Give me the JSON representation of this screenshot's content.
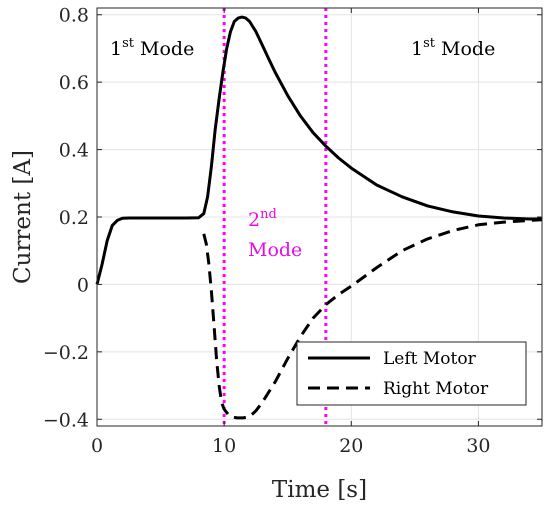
{
  "chart_data": {
    "type": "line",
    "xlabel": "Time [s]",
    "ylabel": "Current [A]",
    "xlim": [
      0,
      35
    ],
    "ylim": [
      -0.42,
      0.82
    ],
    "xticks": [
      0,
      10,
      20,
      30
    ],
    "yticks": [
      -0.4,
      -0.2,
      0,
      0.2,
      0.4,
      0.6,
      0.8
    ],
    "ytick_labels": [
      "−0.4",
      "−0.2",
      "0",
      "0.2",
      "0.4",
      "0.6",
      "0.8"
    ],
    "grid": true,
    "legend_position": "bottom-right",
    "series": [
      {
        "name": "Left Motor",
        "style": "solid",
        "color": "#000000",
        "x": [
          0,
          0.4,
          0.8,
          1.2,
          1.6,
          2.0,
          2.5,
          3.0,
          4,
          5,
          6,
          7,
          8,
          8.4,
          8.7,
          9.0,
          9.3,
          9.6,
          9.9,
          10.2,
          10.5,
          10.8,
          11.1,
          11.4,
          11.7,
          12.0,
          12.5,
          13,
          13.5,
          14,
          15,
          16,
          17,
          18,
          19,
          20,
          22,
          24,
          26,
          28,
          30,
          32,
          34,
          35
        ],
        "y": [
          0.0,
          0.06,
          0.13,
          0.175,
          0.19,
          0.196,
          0.197,
          0.197,
          0.197,
          0.197,
          0.197,
          0.197,
          0.198,
          0.21,
          0.26,
          0.35,
          0.46,
          0.55,
          0.63,
          0.7,
          0.75,
          0.78,
          0.79,
          0.793,
          0.79,
          0.78,
          0.75,
          0.71,
          0.67,
          0.63,
          0.56,
          0.5,
          0.45,
          0.41,
          0.375,
          0.345,
          0.295,
          0.26,
          0.233,
          0.215,
          0.203,
          0.197,
          0.194,
          0.194
        ]
      },
      {
        "name": "Right Motor",
        "style": "dashed",
        "color": "#000000",
        "x": [
          8.4,
          8.6,
          8.8,
          9.0,
          9.2,
          9.4,
          9.6,
          9.8,
          10.0,
          10.3,
          10.6,
          11.0,
          11.5,
          12.0,
          12.5,
          13,
          13.5,
          14,
          15,
          16,
          17,
          18,
          19,
          20,
          22,
          24,
          26,
          28,
          30,
          32,
          34,
          35
        ],
        "y": [
          0.15,
          0.12,
          0.06,
          -0.02,
          -0.12,
          -0.22,
          -0.3,
          -0.35,
          -0.37,
          -0.385,
          -0.393,
          -0.396,
          -0.396,
          -0.392,
          -0.375,
          -0.35,
          -0.32,
          -0.29,
          -0.22,
          -0.155,
          -0.1,
          -0.06,
          -0.03,
          -0.005,
          0.05,
          0.1,
          0.135,
          0.16,
          0.177,
          0.185,
          0.19,
          0.192
        ]
      }
    ],
    "mode_lines": {
      "x": [
        10,
        18
      ],
      "color": "#ff00ff",
      "style": "dotted"
    },
    "annotations": {
      "left_mode": {
        "base": "1",
        "sup": "st",
        "rest": " Mode"
      },
      "mid_mode": {
        "sup_base": "2",
        "sup": "nd",
        "line2": "Mode",
        "color": "#e60ce6"
      },
      "right_mode": {
        "base": "1",
        "sup": "st",
        "rest": " Mode"
      }
    },
    "legend": [
      "Left Motor",
      "Right Motor"
    ]
  }
}
